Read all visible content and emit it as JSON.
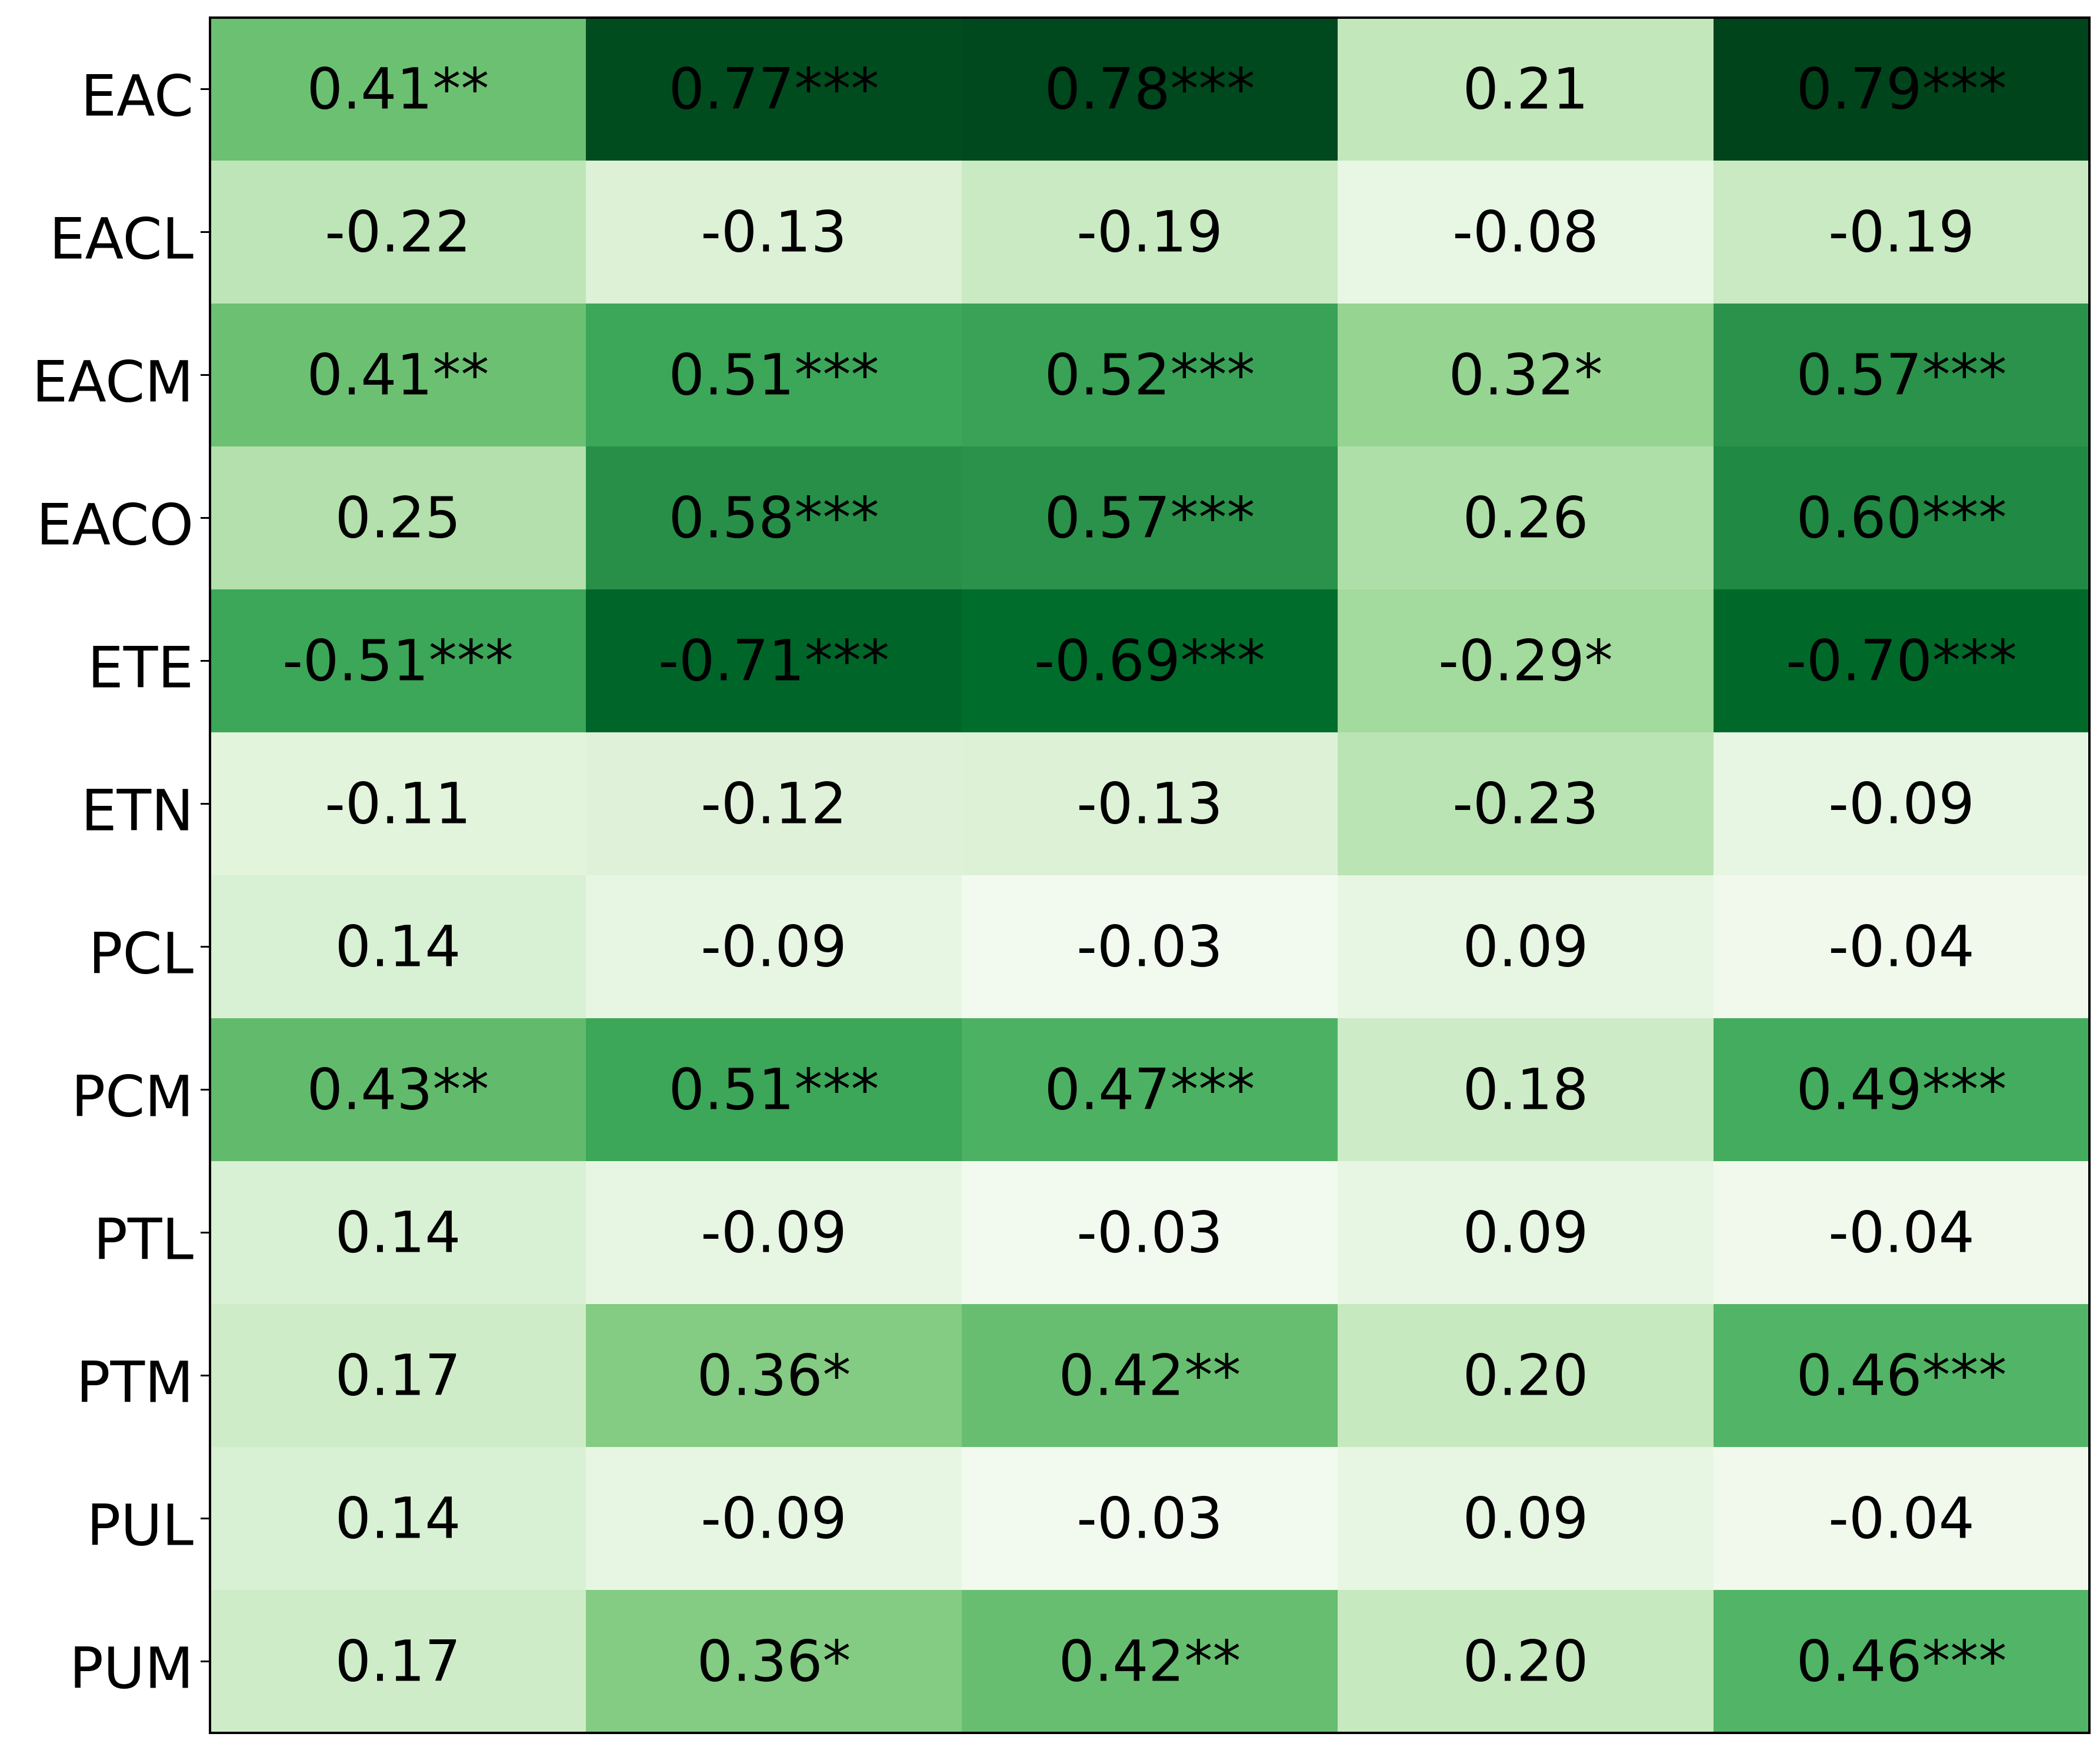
{
  "chart_data": {
    "type": "heatmap",
    "title": "",
    "xlabel": "",
    "ylabel": "",
    "colormap": "Greens",
    "value_range": [
      0,
      0.79
    ],
    "color_stops": [
      "#f7fcf5",
      "#e5f5e0",
      "#c7e9c0",
      "#a1d99b",
      "#74c476",
      "#41ab5d",
      "#238b45",
      "#006d2c",
      "#00441b"
    ],
    "border_color": "#000000",
    "text_color": "#000000",
    "columns": 5,
    "column_labels": [],
    "rows": [
      "EAC",
      "EACL",
      "EACM",
      "EACO",
      "ETE",
      "ETN",
      "PCL",
      "PCM",
      "PTL",
      "PTM",
      "PUL",
      "PUM"
    ],
    "values": [
      [
        0.41,
        0.77,
        0.78,
        0.21,
        0.79
      ],
      [
        -0.22,
        -0.13,
        -0.19,
        -0.08,
        -0.19
      ],
      [
        0.41,
        0.51,
        0.52,
        0.32,
        0.57
      ],
      [
        0.25,
        0.58,
        0.57,
        0.26,
        0.6
      ],
      [
        -0.51,
        -0.71,
        -0.69,
        -0.29,
        -0.7
      ],
      [
        -0.11,
        -0.12,
        -0.13,
        -0.23,
        -0.09
      ],
      [
        0.14,
        -0.09,
        -0.03,
        0.09,
        -0.04
      ],
      [
        0.43,
        0.51,
        0.47,
        0.18,
        0.49
      ],
      [
        0.14,
        -0.09,
        -0.03,
        0.09,
        -0.04
      ],
      [
        0.17,
        0.36,
        0.42,
        0.2,
        0.46
      ],
      [
        0.14,
        -0.09,
        -0.03,
        0.09,
        -0.04
      ],
      [
        0.17,
        0.36,
        0.42,
        0.2,
        0.46
      ]
    ],
    "labels": [
      [
        "0.41**",
        "0.77***",
        "0.78***",
        "0.21",
        "0.79***"
      ],
      [
        "-0.22",
        "-0.13",
        "-0.19",
        "-0.08",
        "-0.19"
      ],
      [
        "0.41**",
        "0.51***",
        "0.52***",
        "0.32*",
        "0.57***"
      ],
      [
        "0.25",
        "0.58***",
        "0.57***",
        "0.26",
        "0.60***"
      ],
      [
        "-0.51***",
        "-0.71***",
        "-0.69***",
        "-0.29*",
        "-0.70***"
      ],
      [
        "-0.11",
        "-0.12",
        "-0.13",
        "-0.23",
        "-0.09"
      ],
      [
        "0.14",
        "-0.09",
        "-0.03",
        "0.09",
        "-0.04"
      ],
      [
        "0.43**",
        "0.51***",
        "0.47***",
        "0.18",
        "0.49***"
      ],
      [
        "0.14",
        "-0.09",
        "-0.03",
        "0.09",
        "-0.04"
      ],
      [
        "0.17",
        "0.36*",
        "0.42**",
        "0.20",
        "0.46***"
      ],
      [
        "0.14",
        "-0.09",
        "-0.03",
        "0.09",
        "-0.04"
      ],
      [
        "0.17",
        "0.36*",
        "0.42**",
        "0.20",
        "0.46***"
      ]
    ]
  }
}
